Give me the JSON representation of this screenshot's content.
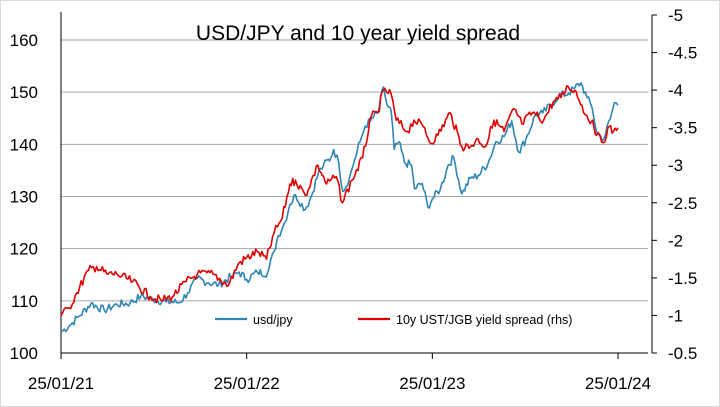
{
  "chart_data": {
    "type": "line",
    "title": "USD/JPY and 10 year yield spread",
    "x_ticks": [
      "25/01/21",
      "25/01/22",
      "25/01/23",
      "25/01/24"
    ],
    "x_range": [
      "2021-01-25",
      "2024-01-25"
    ],
    "y_left": {
      "ticks": [
        "100",
        "110",
        "120",
        "130",
        "140",
        "150",
        "160"
      ],
      "range": [
        100,
        165
      ]
    },
    "y_right": {
      "ticks": [
        "-0.5",
        "-1",
        "-1.5",
        "-2",
        "-2.5",
        "-3",
        "-3.5",
        "-4",
        "-4.5",
        "-5"
      ],
      "range": [
        -0.5,
        -5
      ],
      "reversed": true
    },
    "grid": "horizontal",
    "legend_position": "bottom-center",
    "series": [
      {
        "name": "usd/jpy",
        "axis": "left",
        "color": "#2e86b4",
        "points": [
          [
            "2021-01-25",
            104.0
          ],
          [
            "2021-02-10",
            105.2
          ],
          [
            "2021-03-01",
            107.0
          ],
          [
            "2021-03-25",
            109.5
          ],
          [
            "2021-04-20",
            108.2
          ],
          [
            "2021-05-15",
            109.3
          ],
          [
            "2021-06-10",
            109.6
          ],
          [
            "2021-07-01",
            110.9
          ],
          [
            "2021-07-25",
            110.3
          ],
          [
            "2021-08-20",
            109.8
          ],
          [
            "2021-09-15",
            109.7
          ],
          [
            "2021-10-01",
            111.5
          ],
          [
            "2021-10-20",
            114.3
          ],
          [
            "2021-11-10",
            113.5
          ],
          [
            "2021-12-01",
            113.1
          ],
          [
            "2021-12-25",
            114.6
          ],
          [
            "2022-01-10",
            115.5
          ],
          [
            "2022-01-25",
            114.1
          ],
          [
            "2022-02-15",
            115.5
          ],
          [
            "2022-03-07",
            115.3
          ],
          [
            "2022-03-20",
            119.5
          ],
          [
            "2022-03-28",
            122.5
          ],
          [
            "2022-04-10",
            125.0
          ],
          [
            "2022-04-20",
            128.5
          ],
          [
            "2022-05-01",
            130.3
          ],
          [
            "2022-05-20",
            127.5
          ],
          [
            "2022-06-01",
            130.0
          ],
          [
            "2022-06-15",
            134.5
          ],
          [
            "2022-06-25",
            136.0
          ],
          [
            "2022-07-10",
            137.5
          ],
          [
            "2022-07-15",
            139.0
          ],
          [
            "2022-07-25",
            136.5
          ],
          [
            "2022-08-02",
            131.0
          ],
          [
            "2022-08-15",
            133.5
          ],
          [
            "2022-08-25",
            137.0
          ],
          [
            "2022-09-05",
            140.5
          ],
          [
            "2022-09-15",
            143.5
          ],
          [
            "2022-09-25",
            144.5
          ],
          [
            "2022-10-10",
            146.0
          ],
          [
            "2022-10-21",
            151.0
          ],
          [
            "2022-10-28",
            147.5
          ],
          [
            "2022-11-05",
            146.5
          ],
          [
            "2022-11-11",
            139.0
          ],
          [
            "2022-11-20",
            140.5
          ],
          [
            "2022-12-01",
            136.5
          ],
          [
            "2022-12-15",
            136.0
          ],
          [
            "2022-12-21",
            131.5
          ],
          [
            "2023-01-05",
            132.5
          ],
          [
            "2023-01-16",
            128.0
          ],
          [
            "2023-01-25",
            129.5
          ],
          [
            "2023-02-10",
            131.5
          ],
          [
            "2023-02-25",
            136.0
          ],
          [
            "2023-03-08",
            137.5
          ],
          [
            "2023-03-24",
            130.5
          ],
          [
            "2023-04-10",
            133.5
          ],
          [
            "2023-04-25",
            134.0
          ],
          [
            "2023-05-15",
            136.5
          ],
          [
            "2023-05-30",
            140.5
          ],
          [
            "2023-06-15",
            141.5
          ],
          [
            "2023-06-30",
            144.5
          ],
          [
            "2023-07-14",
            138.5
          ],
          [
            "2023-07-28",
            141.0
          ],
          [
            "2023-08-15",
            145.5
          ],
          [
            "2023-08-30",
            146.0
          ],
          [
            "2023-09-15",
            147.5
          ],
          [
            "2023-09-30",
            149.3
          ],
          [
            "2023-10-20",
            149.8
          ],
          [
            "2023-11-01",
            150.8
          ],
          [
            "2023-11-13",
            151.8
          ],
          [
            "2023-11-25",
            149.0
          ],
          [
            "2023-12-05",
            147.0
          ],
          [
            "2023-12-15",
            142.0
          ],
          [
            "2023-12-28",
            141.0
          ],
          [
            "2024-01-10",
            145.0
          ],
          [
            "2024-01-18",
            148.0
          ],
          [
            "2024-01-25",
            147.5
          ]
        ]
      },
      {
        "name": "10y UST/JGB yield spread (rhs)",
        "axis": "right",
        "color": "#e00000",
        "points": [
          [
            "2021-01-25",
            -1.0
          ],
          [
            "2021-02-10",
            -1.1
          ],
          [
            "2021-02-25",
            -1.3
          ],
          [
            "2021-03-20",
            -1.6
          ],
          [
            "2021-04-05",
            -1.65
          ],
          [
            "2021-04-25",
            -1.55
          ],
          [
            "2021-05-15",
            -1.55
          ],
          [
            "2021-06-15",
            -1.45
          ],
          [
            "2021-07-20",
            -1.25
          ],
          [
            "2021-08-10",
            -1.2
          ],
          [
            "2021-09-01",
            -1.25
          ],
          [
            "2021-09-28",
            -1.45
          ],
          [
            "2021-10-20",
            -1.55
          ],
          [
            "2021-11-20",
            -1.55
          ],
          [
            "2021-12-20",
            -1.4
          ],
          [
            "2022-01-10",
            -1.7
          ],
          [
            "2022-02-15",
            -1.85
          ],
          [
            "2022-03-05",
            -1.75
          ],
          [
            "2022-03-20",
            -2.1
          ],
          [
            "2022-04-05",
            -2.3
          ],
          [
            "2022-04-20",
            -2.75
          ],
          [
            "2022-05-01",
            -2.8
          ],
          [
            "2022-05-20",
            -2.6
          ],
          [
            "2022-06-14",
            -3.0
          ],
          [
            "2022-07-01",
            -2.75
          ],
          [
            "2022-07-20",
            -2.85
          ],
          [
            "2022-08-01",
            -2.5
          ],
          [
            "2022-08-20",
            -2.8
          ],
          [
            "2022-09-10",
            -3.1
          ],
          [
            "2022-09-27",
            -3.65
          ],
          [
            "2022-10-10",
            -3.7
          ],
          [
            "2022-10-21",
            -4.0
          ],
          [
            "2022-11-05",
            -3.95
          ],
          [
            "2022-11-15",
            -3.6
          ],
          [
            "2022-12-07",
            -3.45
          ],
          [
            "2022-12-20",
            -3.6
          ],
          [
            "2023-01-10",
            -3.5
          ],
          [
            "2023-01-20",
            -3.3
          ],
          [
            "2023-02-05",
            -3.4
          ],
          [
            "2023-03-01",
            -3.7
          ],
          [
            "2023-03-24",
            -3.25
          ],
          [
            "2023-04-10",
            -3.25
          ],
          [
            "2023-04-25",
            -3.35
          ],
          [
            "2023-05-10",
            -3.25
          ],
          [
            "2023-05-26",
            -3.6
          ],
          [
            "2023-06-15",
            -3.45
          ],
          [
            "2023-07-05",
            -3.75
          ],
          [
            "2023-07-20",
            -3.55
          ],
          [
            "2023-08-10",
            -3.7
          ],
          [
            "2023-09-01",
            -3.6
          ],
          [
            "2023-09-20",
            -3.85
          ],
          [
            "2023-10-05",
            -3.9
          ],
          [
            "2023-10-19",
            -4.05
          ],
          [
            "2023-11-01",
            -4.0
          ],
          [
            "2023-11-15",
            -3.8
          ],
          [
            "2023-11-28",
            -3.6
          ],
          [
            "2023-12-06",
            -3.6
          ],
          [
            "2023-12-14",
            -3.4
          ],
          [
            "2023-12-27",
            -3.3
          ],
          [
            "2024-01-05",
            -3.5
          ],
          [
            "2024-01-16",
            -3.45
          ],
          [
            "2024-01-25",
            -3.5
          ]
        ]
      }
    ]
  }
}
